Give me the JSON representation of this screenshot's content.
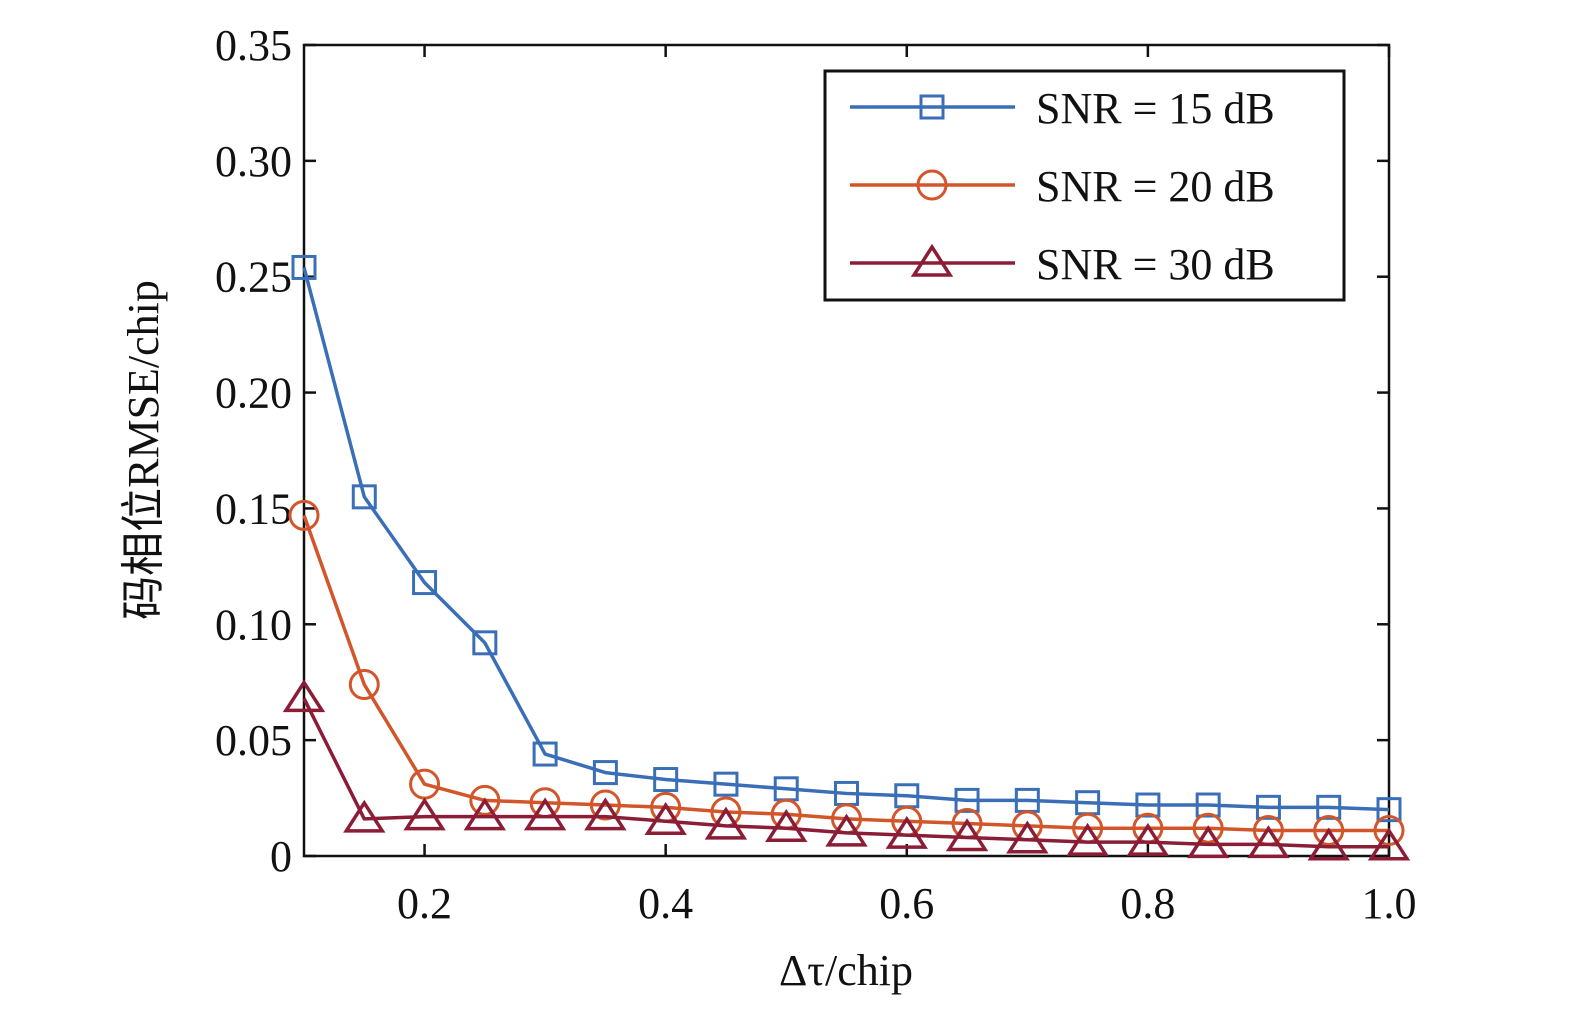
{
  "chart_data": {
    "type": "line",
    "title": "",
    "xlabel": "Δτ/chip",
    "ylabel": "码相位RMSE/chip",
    "xlim": [
      0.1,
      1.0
    ],
    "ylim": [
      0,
      0.35
    ],
    "xticks": [
      0.2,
      0.4,
      0.6,
      0.8,
      1.0
    ],
    "xtick_labels": [
      "0.2",
      "0.4",
      "0.6",
      "0.8",
      "1.0"
    ],
    "yticks": [
      0,
      0.05,
      0.1,
      0.15,
      0.2,
      0.25,
      0.3,
      0.35
    ],
    "ytick_labels": [
      "0",
      "0.05",
      "0.10",
      "0.15",
      "0.20",
      "0.25",
      "0.30",
      "0.35"
    ],
    "grid": false,
    "legend_position": "top-right",
    "x": [
      0.1,
      0.15,
      0.2,
      0.25,
      0.3,
      0.35,
      0.4,
      0.45,
      0.5,
      0.55,
      0.6,
      0.65,
      0.7,
      0.75,
      0.8,
      0.85,
      0.9,
      0.95,
      1.0
    ],
    "series": [
      {
        "name": "SNR = 15 dB",
        "marker": "square",
        "color": "#3a6fb7",
        "values": [
          0.254,
          0.155,
          0.118,
          0.092,
          0.044,
          0.036,
          0.033,
          0.031,
          0.029,
          0.027,
          0.026,
          0.024,
          0.024,
          0.023,
          0.022,
          0.022,
          0.021,
          0.021,
          0.02
        ]
      },
      {
        "name": "SNR = 20 dB",
        "marker": "circle",
        "color": "#d2562a",
        "values": [
          0.147,
          0.074,
          0.031,
          0.024,
          0.023,
          0.022,
          0.021,
          0.019,
          0.018,
          0.016,
          0.015,
          0.014,
          0.013,
          0.012,
          0.012,
          0.012,
          0.011,
          0.011,
          0.011
        ]
      },
      {
        "name": "SNR = 30 dB",
        "marker": "triangle",
        "color": "#8b1e36",
        "values": [
          0.068,
          0.016,
          0.017,
          0.017,
          0.017,
          0.017,
          0.015,
          0.013,
          0.012,
          0.01,
          0.009,
          0.008,
          0.007,
          0.006,
          0.006,
          0.005,
          0.005,
          0.004,
          0.004
        ]
      }
    ]
  }
}
